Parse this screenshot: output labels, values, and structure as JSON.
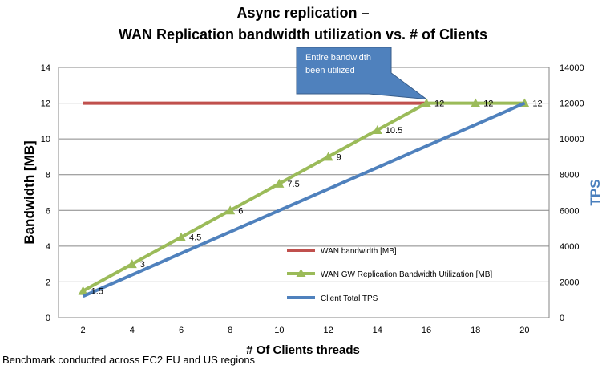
{
  "chart_data": {
    "type": "line",
    "title_line1": "Async replication –",
    "title_line2": "WAN Replication bandwidth utilization vs. # of Clients",
    "xlabel": "# Of Clients threads",
    "ylabel": "Bandwidth [MB]",
    "y2label": "TPS",
    "x": [
      2,
      4,
      6,
      8,
      10,
      12,
      14,
      16,
      18,
      20
    ],
    "xticks": [
      "2",
      "4",
      "6",
      "8",
      "10",
      "12",
      "14",
      "16",
      "18",
      "20"
    ],
    "xlim": [
      1,
      21
    ],
    "ylim": [
      0,
      14
    ],
    "yticks": [
      "0",
      "2",
      "4",
      "6",
      "8",
      "10",
      "12",
      "14"
    ],
    "y2lim": [
      0,
      14000
    ],
    "y2ticks": [
      "0",
      "2000",
      "4000",
      "6000",
      "8000",
      "10000",
      "12000",
      "14000"
    ],
    "series": [
      {
        "name": "WAN bandwidth [MB]",
        "axis": "left",
        "color": "#c0504d",
        "marker": "none",
        "x": [
          2,
          16
        ],
        "values": [
          12,
          12
        ]
      },
      {
        "name": "WAN GW Replication Bandwidth Utilization [MB]",
        "axis": "left",
        "color": "#9bbb59",
        "marker": "triangle",
        "x": [
          2,
          4,
          6,
          8,
          10,
          12,
          14,
          16,
          18,
          20
        ],
        "values": [
          1.5,
          3,
          4.5,
          6,
          7.5,
          9,
          10.5,
          12,
          12,
          12
        ],
        "labels": [
          "1.5",
          "3",
          "4.5",
          "6",
          "7.5",
          "9",
          "10.5",
          "12",
          "12",
          "12"
        ]
      },
      {
        "name": "Client Total TPS",
        "axis": "right",
        "color": "#4f81bd",
        "marker": "none",
        "x": [
          2,
          20
        ],
        "values": [
          1200,
          12000
        ]
      }
    ],
    "annotation": {
      "line1": "Entire bandwidth",
      "line2": "been utilized",
      "target_x": 16,
      "target_y": 12
    }
  },
  "footnote": "Benchmark conducted across EC2 EU and US regions"
}
